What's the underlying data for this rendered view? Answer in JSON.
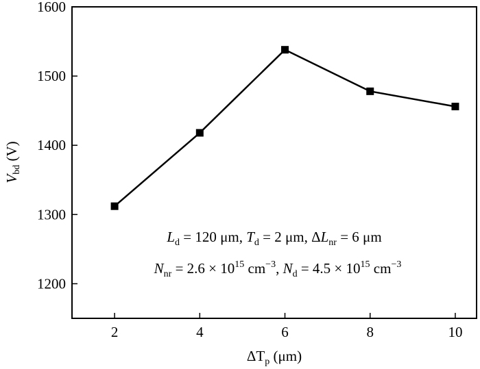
{
  "chart_data": {
    "type": "line",
    "x": [
      2,
      4,
      6,
      8,
      10
    ],
    "values": [
      1312,
      1418,
      1538,
      1478,
      1456
    ],
    "xlim": [
      1,
      10.5
    ],
    "ylim": [
      1150,
      1600
    ],
    "xticks": [
      2,
      4,
      6,
      8,
      10
    ],
    "yticks": [
      1200,
      1300,
      1400,
      1500,
      1600
    ],
    "xlabel": {
      "prefix": "ΔT",
      "sub": "p",
      "suffix": " (μm)"
    },
    "ylabel": {
      "main": "V",
      "sub": "bd",
      "suffix": " (V)"
    },
    "annotations": {
      "line1": {
        "l_d": "L",
        "l_d_sub": "d",
        "l_d_val": " = 120 μm, ",
        "t_d": "T",
        "t_d_sub": "d",
        "t_d_val": " = 2 μm, Δ",
        "l_nr": "L",
        "l_nr_sub": "nr",
        "l_nr_val": " = 6 μm"
      },
      "line2": {
        "n_nr": "N",
        "n_nr_sub": "nr",
        "n_nr_val": " = 2.6 × 10",
        "n_nr_exp": "15",
        "n_nr_unit": " cm",
        "n_nr_unit_exp": "−3",
        "sep": ", ",
        "n_d": "N",
        "n_d_sub": "d",
        "n_d_val": " = 4.5 × 10",
        "n_d_exp": "15",
        "n_d_unit": " cm",
        "n_d_unit_exp": "−3"
      }
    },
    "grid": false,
    "legend": "none",
    "marker": "square",
    "color": "#000000"
  }
}
